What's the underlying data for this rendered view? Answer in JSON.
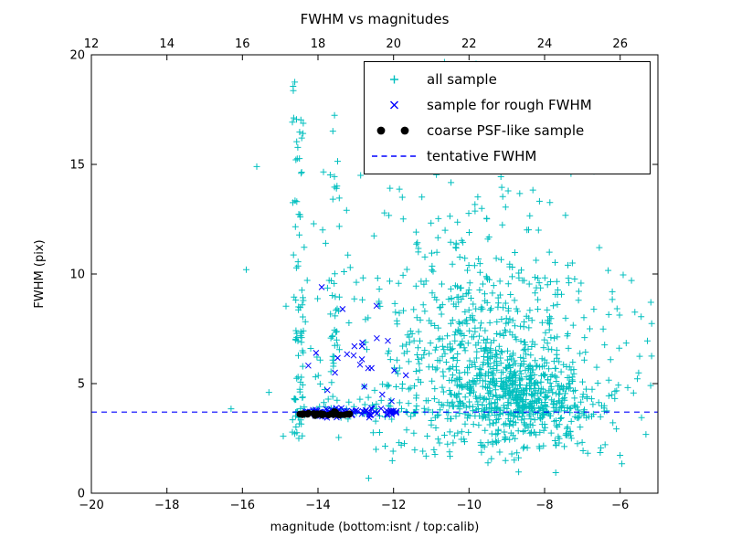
{
  "chart_data": {
    "type": "scatter",
    "title": "FWHM vs magnitudes",
    "xlabel": "magnitude (bottom:isnt / top:calib)",
    "ylabel": "FWHM (pix)",
    "xlim": [
      -20,
      -5
    ],
    "ylim": [
      0,
      20
    ],
    "x_ticks_bottom": [
      -20,
      -18,
      -16,
      -14,
      -12,
      -10,
      -8,
      -6
    ],
    "x_ticks_top": [
      12,
      14,
      16,
      18,
      20,
      22,
      24,
      26
    ],
    "top_axis_offset": 32,
    "y_ticks": [
      0,
      5,
      10,
      15,
      20
    ],
    "axis_color": "#000000",
    "grid": false,
    "legend": {
      "location": "upper right"
    },
    "tentative_fwhm": 3.7,
    "series": [
      {
        "name": "all sample",
        "marker": "plus",
        "color": "#00bfbf",
        "clusters": [
          {
            "dist": "points",
            "pts": [
              [
                -15.9,
                10.2
              ],
              [
                -15.62,
                14.9
              ],
              [
                -15.3,
                4.6
              ],
              [
                -16.3,
                3.85
              ],
              [
                -14.92,
                2.6
              ]
            ]
          },
          {
            "dist": "uniform",
            "x": [
              -14.68,
              -14.38
            ],
            "y": [
              2.4,
              9.5
            ],
            "n": 48
          },
          {
            "dist": "uniform",
            "x": [
              -14.68,
              -14.36
            ],
            "y": [
              9.5,
              19.9
            ],
            "n": 30
          },
          {
            "dist": "uniform",
            "x": [
              -13.68,
              -13.42
            ],
            "y": [
              2.5,
              8.5
            ],
            "n": 22
          },
          {
            "dist": "uniform",
            "x": [
              -13.68,
              -13.4
            ],
            "y": [
              8.5,
              18.0
            ],
            "n": 14
          },
          {
            "dist": "uniform",
            "x": [
              -14.3,
              -12.5
            ],
            "y": [
              4.5,
              13.0
            ],
            "n": 18
          },
          {
            "dist": "band",
            "x": [
              -14.6,
              -6.3
            ],
            "cy": 3.8,
            "sy": 0.22,
            "n": 150
          },
          {
            "dist": "gaussian",
            "cx": -8.7,
            "cy": 4.4,
            "sx": 0.95,
            "sy": 1.05,
            "n": 480
          },
          {
            "dist": "gaussian",
            "cx": -9.6,
            "cy": 6.2,
            "sx": 1.35,
            "sy": 1.8,
            "n": 300
          },
          {
            "dist": "gaussian",
            "cx": -9.9,
            "cy": 9.7,
            "sx": 1.6,
            "sy": 2.1,
            "n": 140
          },
          {
            "dist": "gaussian",
            "cx": -9.4,
            "cy": 6.5,
            "sx": 2.2,
            "sy": 3.4,
            "n": 160
          },
          {
            "dist": "uniform",
            "x": [
              -13.3,
              -6.4
            ],
            "y": [
              13.5,
              19.9
            ],
            "n": 32
          },
          {
            "dist": "uniform",
            "x": [
              -12.6,
              -5.9
            ],
            "y": [
              1.2,
              2.9
            ],
            "n": 40
          },
          {
            "dist": "uniform",
            "x": [
              -6.5,
              -5.15
            ],
            "y": [
              2.4,
              9.6
            ],
            "n": 22
          }
        ]
      },
      {
        "name": "sample for rough FWHM",
        "marker": "x",
        "color": "#0000ff",
        "clusters": [
          {
            "dist": "band",
            "x": [
              -14.35,
              -11.92
            ],
            "cy": 3.66,
            "sy": 0.1,
            "n": 95
          },
          {
            "dist": "gaussian",
            "cx": -12.9,
            "cy": 6.1,
            "sx": 0.55,
            "sy": 0.6,
            "n": 14
          },
          {
            "dist": "points",
            "pts": [
              [
                -13.9,
                9.4
              ],
              [
                -13.35,
                8.4
              ],
              [
                -12.45,
                8.55
              ],
              [
                -14.05,
                6.4
              ],
              [
                -12.15,
                6.95
              ],
              [
                -11.98,
                5.6
              ],
              [
                -13.75,
                4.7
              ],
              [
                -12.3,
                4.5
              ],
              [
                -12.05,
                4.2
              ],
              [
                -13.55,
                5.5
              ]
            ]
          }
        ]
      },
      {
        "name": "coarse PSF-like sample",
        "marker": "dot",
        "color": "#000000",
        "clusters": [
          {
            "dist": "band",
            "x": [
              -14.52,
              -13.15
            ],
            "cy": 3.6,
            "sy": 0.045,
            "n": 30
          }
        ]
      },
      {
        "name": "tentative FWHM",
        "type": "hline",
        "style": "dashed",
        "color": "#0000ff",
        "y": 3.7
      }
    ]
  }
}
